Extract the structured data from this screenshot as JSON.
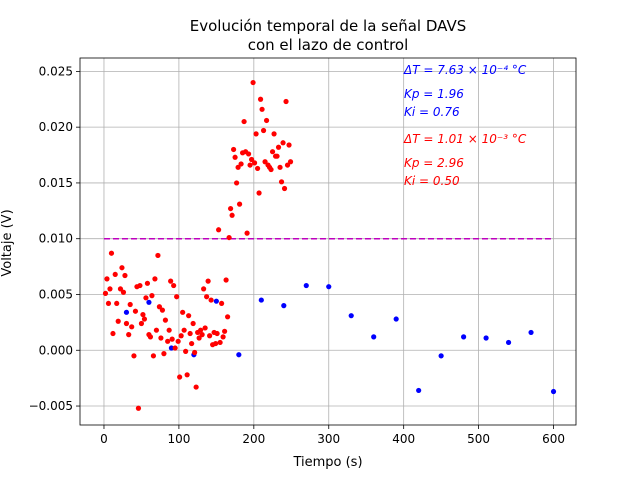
{
  "chart_data": {
    "type": "scatter",
    "title_lines": [
      "Evolución temporal de la señal DAVS",
      "con el lazo de control"
    ],
    "xlabel": "Tiempo (s)",
    "ylabel": "Voltaje (V)",
    "xlim": [
      -32,
      630
    ],
    "ylim": [
      -0.0067,
      0.0262
    ],
    "xticks": [
      0,
      100,
      200,
      300,
      400,
      500,
      600
    ],
    "xtick_labels": [
      "0",
      "100",
      "200",
      "300",
      "400",
      "500",
      "600"
    ],
    "yticks": [
      -0.005,
      0.0,
      0.005,
      0.01,
      0.015,
      0.02,
      0.025
    ],
    "ytick_labels": [
      "−0.005",
      "0.000",
      "0.005",
      "0.010",
      "0.015",
      "0.020",
      "0.025"
    ],
    "grid": true,
    "colors": {
      "blue_series": "#0000ff",
      "red_series": "#ff0000",
      "setpoint": "#bf00bf",
      "grid": "#b0b0b0"
    },
    "setpoint_line": {
      "y": 0.01,
      "x_start": 0,
      "x_end": 598,
      "style": "dashed"
    },
    "annotations": [
      {
        "text": "ΔT = 7.63 × 10⁻⁴ °C",
        "color": "#0000ff"
      },
      {
        "text": "Kp = 1.96",
        "color": "#0000ff"
      },
      {
        "text": "Ki = 0.76",
        "color": "#0000ff"
      },
      {
        "text": "ΔT = 1.01 × 10⁻³ °C",
        "color": "#ff0000"
      },
      {
        "text": "Kp = 2.96",
        "color": "#ff0000"
      },
      {
        "text": "Ki = 0.50",
        "color": "#ff0000"
      }
    ],
    "series": [
      {
        "color": "#0000ff",
        "x": [
          30,
          60,
          90,
          120,
          150,
          180,
          210,
          240,
          270,
          300,
          330,
          360,
          390,
          420,
          450,
          480,
          510,
          540,
          570,
          600
        ],
        "y": [
          0.0034,
          0.0043,
          0.0002,
          -0.0004,
          0.0044,
          -0.0004,
          0.0045,
          0.004,
          0.0058,
          0.0057,
          0.0031,
          0.0012,
          0.0028,
          -0.0036,
          -0.0005,
          0.0012,
          0.0011,
          0.0007,
          0.0016,
          -0.0037
        ]
      },
      {
        "color": "#ff0000",
        "x": [
          2,
          4,
          6,
          8,
          10,
          12,
          15,
          17,
          19,
          22,
          24,
          26,
          28,
          30,
          33,
          35,
          37,
          40,
          42,
          44,
          46,
          48,
          50,
          52,
          54,
          56,
          58,
          60,
          62,
          64,
          66,
          68,
          70,
          72,
          74,
          76,
          78,
          80,
          82,
          85,
          87,
          89,
          91,
          93,
          95,
          97,
          99,
          101,
          103,
          105,
          107,
          109,
          111,
          113,
          115,
          117,
          119,
          121,
          123,
          125,
          127,
          129,
          131,
          133,
          135,
          137,
          139,
          141,
          143,
          145,
          147,
          149,
          151,
          153,
          155,
          157,
          159,
          161,
          163,
          165,
          167,
          169,
          171,
          173,
          175,
          177,
          179,
          181,
          183,
          185,
          187,
          189,
          191,
          193,
          195,
          197,
          199,
          201,
          203,
          205,
          207,
          209,
          211,
          213,
          215,
          217,
          219,
          221,
          223,
          225,
          227,
          229,
          231,
          233,
          235,
          237,
          239,
          241,
          243,
          245,
          247,
          249
        ],
        "y": [
          0.0051,
          0.0064,
          0.0042,
          0.0055,
          0.0087,
          0.0015,
          0.0068,
          0.0042,
          0.0026,
          0.0055,
          0.0074,
          0.0052,
          0.0067,
          0.0024,
          0.0014,
          0.0041,
          0.0021,
          -0.0005,
          0.0035,
          0.0057,
          -0.0052,
          0.0058,
          0.0024,
          0.0032,
          0.0028,
          0.0047,
          0.006,
          0.0014,
          0.0012,
          0.0049,
          -0.0005,
          0.0064,
          0.0018,
          0.0085,
          0.0039,
          0.0011,
          0.0036,
          -0.0003,
          0.0027,
          0.0008,
          0.0018,
          0.0062,
          0.001,
          0.0058,
          0.0002,
          0.0048,
          0.0008,
          -0.0024,
          0.0013,
          0.0034,
          0.0018,
          -0.0001,
          -0.0022,
          0.0031,
          0.0015,
          0.0006,
          0.0024,
          -0.0002,
          -0.0033,
          0.0016,
          0.0011,
          0.0018,
          0.0014,
          0.0055,
          0.002,
          0.0048,
          0.0062,
          0.0013,
          0.0045,
          0.0005,
          0.0016,
          0.0006,
          0.0015,
          0.0108,
          0.0007,
          0.0042,
          0.0012,
          0.0017,
          0.0063,
          0.003,
          0.0101,
          0.0127,
          0.0121,
          0.018,
          0.0173,
          0.015,
          0.0164,
          0.0131,
          0.0167,
          0.0177,
          0.0205,
          0.0178,
          0.0105,
          0.0176,
          0.0166,
          0.0171,
          0.024,
          0.0168,
          0.0194,
          0.0163,
          0.0141,
          0.0225,
          0.0216,
          0.0197,
          0.0169,
          0.0206,
          0.0166,
          0.0164,
          0.0162,
          0.0178,
          0.0194,
          0.0174,
          0.0174,
          0.0182,
          0.0164,
          0.0151,
          0.0186,
          0.0145,
          0.0223,
          0.0166,
          0.0184,
          0.0169
        ]
      }
    ]
  }
}
